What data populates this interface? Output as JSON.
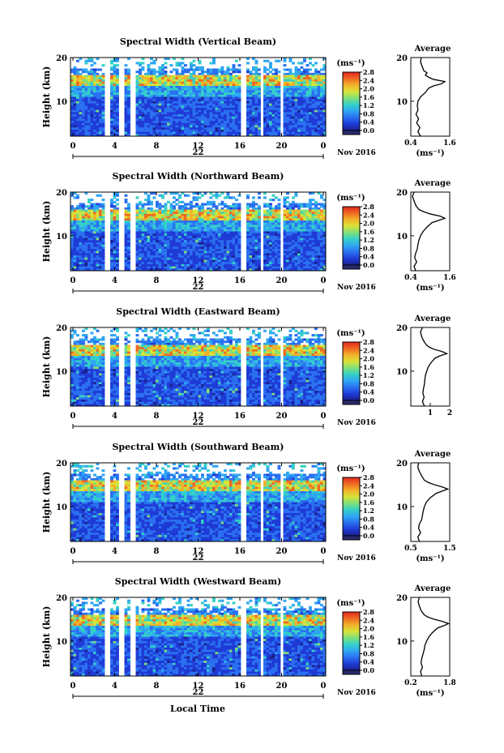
{
  "footer_label": "Local Time",
  "colorbar": {
    "unit": "(ms⁻¹)",
    "ticks": [
      "0.0",
      "0.4",
      "0.8",
      "1.2",
      "1.6",
      "2.0",
      "2.4",
      "2.8"
    ]
  },
  "colors": {
    "scale": [
      "#1a1f8a",
      "#1f3bd6",
      "#2a70f0",
      "#2fa6f2",
      "#35d0c8",
      "#7fe07a",
      "#d7e33a",
      "#f2b22a",
      "#ee6a22",
      "#e32620"
    ],
    "gap": "#ffffff",
    "profile": "#000000"
  },
  "chart_data": [
    {
      "type": "heatmap",
      "title": "Spectral Width (Vertical Beam)",
      "ylabel": "Height (km)",
      "ylim": [
        2,
        20
      ],
      "yticks": [
        "10",
        "20"
      ],
      "xticks": [
        "0",
        "4",
        "8",
        "12",
        "16",
        "20",
        "0"
      ],
      "date_day": "22",
      "date_month": "Nov 2016",
      "clim": [
        0,
        2.8
      ],
      "profile": {
        "title": "Average",
        "xlim": [
          0.4,
          1.6
        ],
        "xticks": [
          "0.4",
          "1.6"
        ],
        "xlabel": "(ms⁻¹)",
        "yticks": [
          "10",
          "20"
        ],
        "heights": [
          2,
          3,
          4,
          5,
          6,
          7,
          8,
          9,
          10,
          11,
          12,
          13,
          13.5,
          14,
          14.5,
          15,
          15.5,
          16,
          16.5,
          17,
          18,
          19,
          20
        ],
        "values": [
          0.7,
          0.62,
          0.68,
          0.58,
          0.64,
          0.56,
          0.62,
          0.6,
          0.62,
          0.7,
          0.85,
          0.95,
          1.1,
          1.35,
          1.45,
          1.1,
          0.95,
          0.85,
          0.9,
          0.8,
          0.75,
          0.7,
          0.72
        ]
      }
    },
    {
      "type": "heatmap",
      "title": "Spectral Width (Northward Beam)",
      "ylabel": "Height (km)",
      "ylim": [
        2,
        20
      ],
      "yticks": [
        "10",
        "20"
      ],
      "xticks": [
        "0",
        "4",
        "8",
        "12",
        "16",
        "20",
        "0"
      ],
      "date_day": "22",
      "date_month": "Nov 2016",
      "clim": [
        0,
        2.8
      ],
      "profile": {
        "title": "Average",
        "xlim": [
          0.4,
          1.6
        ],
        "xticks": [
          "0.4",
          "1.6"
        ],
        "xlabel": "(ms⁻¹)",
        "yticks": [
          "10",
          "20"
        ],
        "heights": [
          2,
          3,
          4,
          5,
          6,
          7,
          8,
          9,
          10,
          11,
          12,
          13,
          13.5,
          14,
          14.5,
          15,
          15.5,
          16,
          17,
          18,
          19,
          20
        ],
        "values": [
          0.55,
          0.5,
          0.58,
          0.52,
          0.55,
          0.6,
          0.62,
          0.65,
          0.7,
          0.78,
          0.9,
          1.05,
          1.25,
          1.45,
          1.3,
          1.0,
          0.8,
          0.65,
          0.55,
          0.5,
          0.45,
          0.5
        ]
      }
    },
    {
      "type": "heatmap",
      "title": "Spectral Width (Eastward Beam)",
      "ylabel": "Height (km)",
      "ylim": [
        2,
        20
      ],
      "yticks": [
        "10",
        "20"
      ],
      "xticks": [
        "0",
        "4",
        "8",
        "12",
        "16",
        "20",
        "0"
      ],
      "date_day": "22",
      "date_month": "Nov 2016",
      "clim": [
        0,
        2.8
      ],
      "profile": {
        "title": "Average",
        "xlim": [
          0,
          2
        ],
        "xticks": [
          "1",
          "2"
        ],
        "xlabel": "",
        "yticks": [
          "10",
          "20"
        ],
        "heights": [
          2,
          3,
          4,
          5,
          6,
          7,
          8,
          9,
          10,
          11,
          12,
          13,
          13.5,
          14,
          14.5,
          15,
          15.5,
          16,
          17,
          18,
          19,
          20
        ],
        "values": [
          0.7,
          0.6,
          0.68,
          0.62,
          0.65,
          0.7,
          0.72,
          0.75,
          0.82,
          0.9,
          1.05,
          1.25,
          1.5,
          1.85,
          1.6,
          1.2,
          0.95,
          0.8,
          0.65,
          0.55,
          0.5,
          0.6
        ]
      }
    },
    {
      "type": "heatmap",
      "title": "Spectral Width (Southward Beam)",
      "ylabel": "Height (km)",
      "ylim": [
        2,
        20
      ],
      "yticks": [
        "10",
        "20"
      ],
      "xticks": [
        "0",
        "4",
        "8",
        "12",
        "16",
        "20",
        "0"
      ],
      "date_day": "22",
      "date_month": "Nov 2016",
      "clim": [
        0,
        2.8
      ],
      "profile": {
        "title": "Average",
        "xlim": [
          0.5,
          1.5
        ],
        "xticks": [
          "0.5",
          "1.5"
        ],
        "xlabel": "(ms⁻¹)",
        "yticks": [
          "10",
          "20"
        ],
        "heights": [
          2,
          3,
          4,
          5,
          6,
          7,
          8,
          9,
          10,
          11,
          12,
          13,
          13.5,
          14,
          14.5,
          15,
          15.5,
          16,
          17,
          18,
          19,
          20
        ],
        "values": [
          0.72,
          0.68,
          0.75,
          0.7,
          0.72,
          0.78,
          0.8,
          0.82,
          0.85,
          0.9,
          1.0,
          1.15,
          1.3,
          1.45,
          1.3,
          1.1,
          0.95,
          0.85,
          0.78,
          0.72,
          0.68,
          0.7
        ]
      }
    },
    {
      "type": "heatmap",
      "title": "Spectral Width (Westward Beam)",
      "ylabel": "Height (km)",
      "ylim": [
        2,
        20
      ],
      "yticks": [
        "10",
        "20"
      ],
      "xticks": [
        "0",
        "4",
        "8",
        "12",
        "16",
        "20",
        "0"
      ],
      "date_day": "22",
      "date_month": "Nov 2016",
      "clim": [
        0,
        2.8
      ],
      "profile": {
        "title": "Average",
        "xlim": [
          0.2,
          1.8
        ],
        "xticks": [
          "0.2",
          "1.8"
        ],
        "xlabel": "(ms⁻¹)",
        "yticks": [
          "10",
          "20"
        ],
        "heights": [
          2,
          3,
          4,
          5,
          6,
          7,
          8,
          9,
          10,
          11,
          12,
          13,
          13.5,
          14,
          14.5,
          15,
          15.5,
          16,
          17,
          18,
          19,
          20
        ],
        "values": [
          0.65,
          0.6,
          0.68,
          0.62,
          0.65,
          0.7,
          0.75,
          0.78,
          0.85,
          0.95,
          1.1,
          1.3,
          1.55,
          1.75,
          1.5,
          1.15,
          0.9,
          0.75,
          0.62,
          0.55,
          0.5,
          0.55
        ]
      }
    }
  ]
}
